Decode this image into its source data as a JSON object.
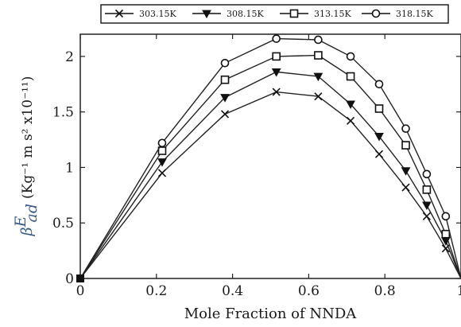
{
  "chart_data": {
    "type": "line",
    "xlabel": "Mole Fraction of NNDA",
    "ylabel": {
      "symbol": "β",
      "superscript": "E",
      "subscript": "ad",
      "units": "(Kg⁻¹ m s² x10⁻¹¹)"
    },
    "xlim": [
      0,
      1
    ],
    "ylim": [
      0,
      2.2
    ],
    "xticks": [
      "0",
      "0.2",
      "0.4",
      "0.6",
      "0.8",
      "1"
    ],
    "xtick_values": [
      0,
      0.2,
      0.4,
      0.6,
      0.8,
      1.0
    ],
    "yticks": [
      "0",
      "0.5",
      "1",
      "1.5",
      "2"
    ],
    "ytick_values": [
      0,
      0.5,
      1.0,
      1.5,
      2.0
    ],
    "grid": false,
    "legend_position": "top",
    "x": [
      0,
      0.215,
      0.38,
      0.515,
      0.625,
      0.71,
      0.785,
      0.855,
      0.91,
      0.96,
      1.0
    ],
    "series": [
      {
        "name": "303.15K",
        "marker": "x",
        "values": [
          0,
          0.95,
          1.48,
          1.68,
          1.64,
          1.42,
          1.12,
          0.82,
          0.56,
          0.27,
          0
        ]
      },
      {
        "name": "308.15K",
        "marker": "triangle-down",
        "values": [
          0,
          1.05,
          1.63,
          1.86,
          1.82,
          1.57,
          1.28,
          0.97,
          0.66,
          0.34,
          0
        ]
      },
      {
        "name": "313.15K",
        "marker": "square",
        "values": [
          0,
          1.15,
          1.79,
          2.0,
          2.01,
          1.82,
          1.53,
          1.2,
          0.8,
          0.4,
          0
        ]
      },
      {
        "name": "318.15K",
        "marker": "circle",
        "values": [
          0,
          1.22,
          1.94,
          2.16,
          2.15,
          2.0,
          1.75,
          1.35,
          0.94,
          0.56,
          0
        ]
      }
    ]
  }
}
